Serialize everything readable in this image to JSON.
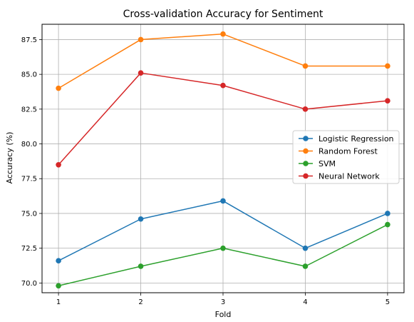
{
  "chart_data": {
    "type": "line",
    "title": "Cross-validation Accuracy for Sentiment",
    "xlabel": "Fold",
    "ylabel": "Accuracy (%)",
    "x": [
      1,
      2,
      3,
      4,
      5
    ],
    "xlim": [
      0.8,
      5.2
    ],
    "ylim": [
      69.3,
      88.6
    ],
    "xticks": [
      "1",
      "2",
      "3",
      "4",
      "5"
    ],
    "yticks": [
      70.0,
      72.5,
      75.0,
      77.5,
      80.0,
      82.5,
      85.0,
      87.5
    ],
    "grid": true,
    "legend_position": "center-right",
    "series": [
      {
        "name": "Logistic Regression",
        "color": "#1f77b4",
        "values": [
          71.6,
          74.6,
          75.9,
          72.5,
          75.0
        ]
      },
      {
        "name": "Random Forest",
        "color": "#ff7f0e",
        "values": [
          84.0,
          87.5,
          87.9,
          85.6,
          85.6
        ]
      },
      {
        "name": "SVM",
        "color": "#2ca02c",
        "values": [
          69.8,
          71.2,
          72.5,
          71.2,
          74.2
        ]
      },
      {
        "name": "Neural Network",
        "color": "#d62728",
        "values": [
          78.5,
          85.1,
          84.2,
          82.5,
          83.1
        ]
      }
    ]
  }
}
